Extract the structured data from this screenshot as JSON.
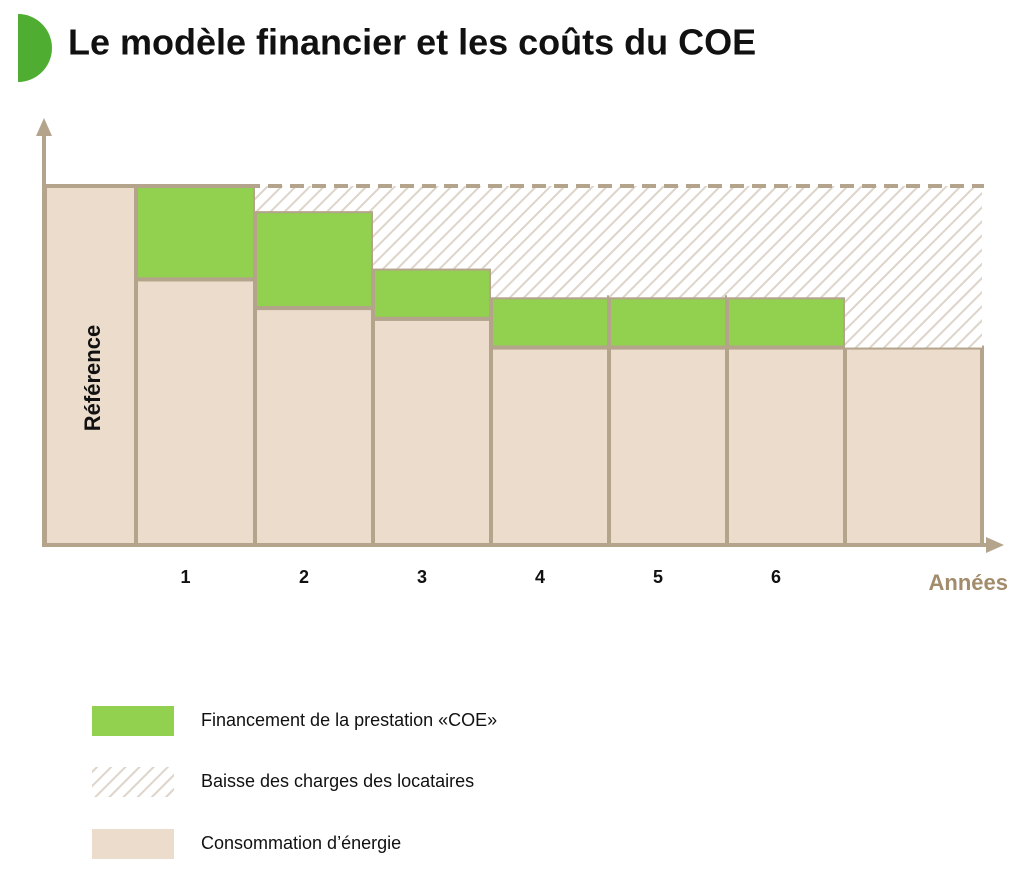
{
  "chart_data": {
    "type": "stacked_bar",
    "title": "Le modèle financier et les coûts du COE",
    "x_label": "Années",
    "categories": [
      "Référence",
      "1",
      "2",
      "3",
      "4",
      "5",
      "6",
      null
    ],
    "series": [
      {
        "name": "Financement de la prestation «COE»",
        "color": "#92d050",
        "values": [
          0,
          26,
          27,
          14,
          14,
          14,
          14,
          0
        ]
      },
      {
        "name": "Baisse des charges des locataires",
        "color": "#e4ddd3",
        "values": [
          0,
          0,
          7,
          23,
          31,
          31,
          31,
          45
        ]
      },
      {
        "name": "Consommation d’énergie",
        "color": "#ebdccb",
        "values": [
          100,
          74,
          66,
          63,
          55,
          55,
          55,
          55
        ]
      }
    ],
    "ylim": [
      0,
      100
    ]
  }
}
